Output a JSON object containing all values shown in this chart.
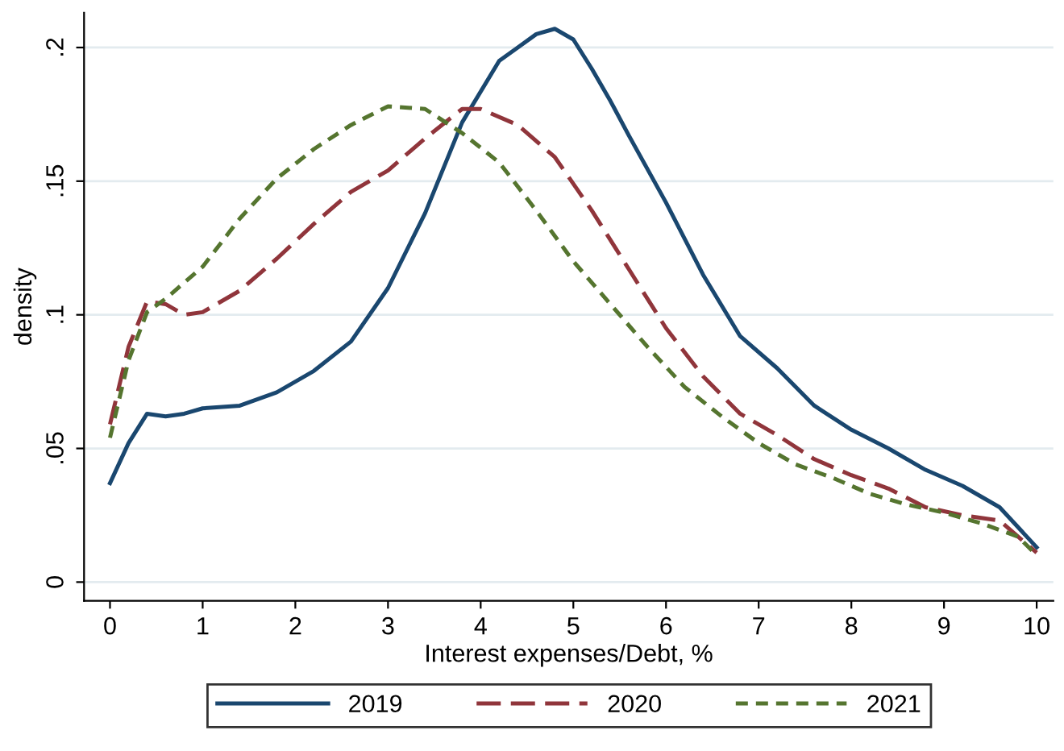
{
  "chart_data": {
    "type": "line",
    "xlabel": "Interest expenses/Debt, %",
    "ylabel": "density",
    "xlim": [
      -0.28,
      10.18
    ],
    "ylim": [
      -0.007,
      0.213
    ],
    "xticks": [
      0,
      1,
      2,
      3,
      4,
      5,
      6,
      7,
      8,
      9,
      10
    ],
    "yticks": [
      {
        "value": 0,
        "label": "0"
      },
      {
        "value": 0.05,
        "label": ".05"
      },
      {
        "value": 0.1,
        "label": ".1"
      },
      {
        "value": 0.15,
        "label": ".15"
      },
      {
        "value": 0.2,
        "label": ".2"
      }
    ],
    "grid": "y",
    "legend": "bottom",
    "marker": "none",
    "series": [
      {
        "name": "2019",
        "color": "#1a476f",
        "line_style": "solid",
        "x": [
          0,
          0.2,
          0.4,
          0.6,
          0.8,
          1,
          1.4,
          1.8,
          2.2,
          2.6,
          3,
          3.4,
          3.8,
          4.2,
          4.4,
          4.6,
          4.8,
          5,
          5.2,
          5.4,
          5.6,
          6,
          6.4,
          6.8,
          7.2,
          7.6,
          8,
          8.4,
          8.8,
          9.2,
          9.6,
          10
        ],
        "values": [
          0.037,
          0.052,
          0.063,
          0.062,
          0.063,
          0.065,
          0.066,
          0.071,
          0.079,
          0.09,
          0.11,
          0.138,
          0.172,
          0.195,
          0.2,
          0.205,
          0.207,
          0.203,
          0.192,
          0.18,
          0.167,
          0.142,
          0.115,
          0.092,
          0.08,
          0.066,
          0.057,
          0.05,
          0.042,
          0.036,
          0.028,
          0.013
        ]
      },
      {
        "name": "2020",
        "color": "#90353b",
        "line_style": "dashed",
        "x": [
          0,
          0.2,
          0.4,
          0.6,
          0.8,
          1,
          1.4,
          1.8,
          2.2,
          2.6,
          3,
          3.4,
          3.8,
          4,
          4.4,
          4.8,
          5.2,
          5.6,
          6,
          6.4,
          6.8,
          7.2,
          7.6,
          8,
          8.4,
          8.8,
          9.2,
          9.6,
          10
        ],
        "values": [
          0.059,
          0.088,
          0.105,
          0.104,
          0.1,
          0.101,
          0.109,
          0.121,
          0.134,
          0.146,
          0.154,
          0.166,
          0.177,
          0.177,
          0.171,
          0.159,
          0.139,
          0.117,
          0.095,
          0.077,
          0.063,
          0.055,
          0.046,
          0.04,
          0.035,
          0.028,
          0.025,
          0.023,
          0.011
        ]
      },
      {
        "name": "2021",
        "color": "#55752f",
        "line_style": "dotted",
        "x": [
          0,
          0.2,
          0.4,
          0.6,
          1,
          1.4,
          1.8,
          2.2,
          2.6,
          3,
          3.4,
          3.8,
          4.2,
          4.6,
          5,
          5.4,
          5.8,
          6.2,
          6.6,
          7,
          7.4,
          7.8,
          8.2,
          8.6,
          9,
          9.4,
          9.8,
          10
        ],
        "values": [
          0.054,
          0.083,
          0.101,
          0.106,
          0.118,
          0.136,
          0.151,
          0.162,
          0.171,
          0.178,
          0.177,
          0.168,
          0.157,
          0.139,
          0.12,
          0.104,
          0.088,
          0.073,
          0.062,
          0.052,
          0.044,
          0.039,
          0.033,
          0.029,
          0.026,
          0.022,
          0.017,
          0.01
        ]
      }
    ]
  }
}
